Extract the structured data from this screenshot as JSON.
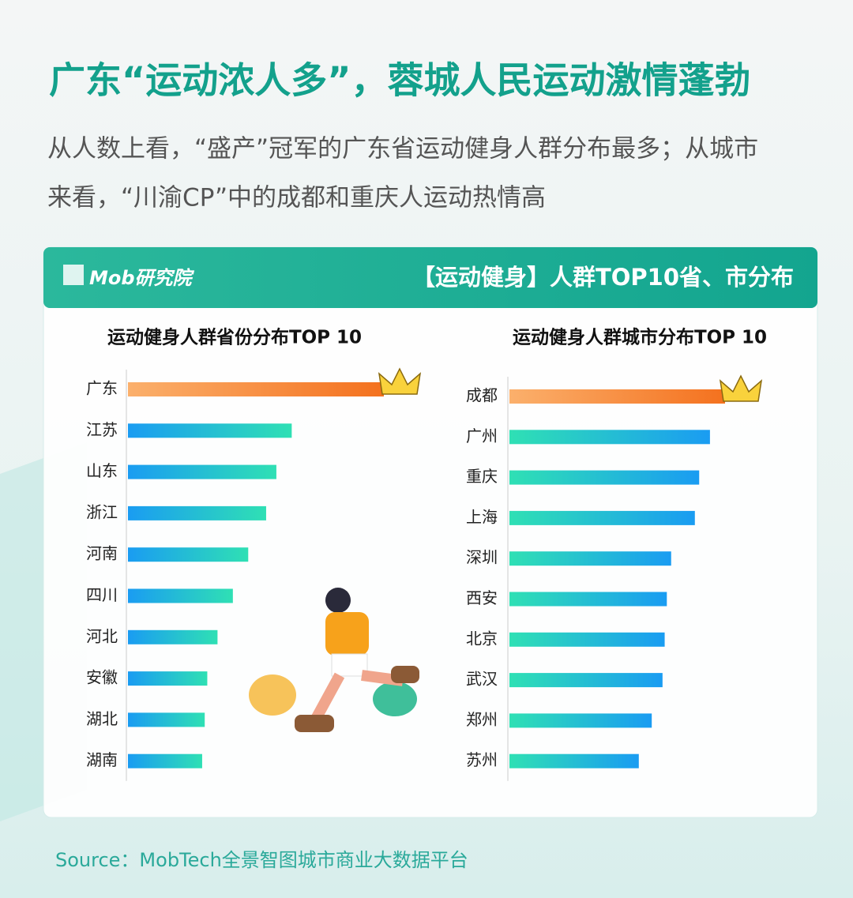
{
  "header": {
    "title": "广东“运动浓人多”，蓉城人民运动激情蓬勃",
    "subtitle_lines": [
      "从人数上看，“盛产”冠军的广东省运动健身人群分布最多；从城市",
      "来看，“川渝CP”中的成都和重庆人运动热情高"
    ]
  },
  "banner": {
    "logo": "Mob研究院",
    "title": "【运动健身】人群TOP10省、市分布"
  },
  "chart_data": [
    {
      "type": "hbar",
      "title": "运动健身人群省份分布TOP 10",
      "categories": [
        "广东",
        "江苏",
        "山东",
        "浙江",
        "河南",
        "四川",
        "河北",
        "安徽",
        "湖北",
        "湖南"
      ],
      "values": [
        100,
        64,
        58,
        54,
        47,
        41,
        35,
        31,
        30,
        29
      ],
      "xlim": [
        0,
        100
      ],
      "colors": [
        "#1a9cf2",
        "#2fe0b4"
      ],
      "highlight_colors": [
        "#fbb06c",
        "#f4711e"
      ]
    },
    {
      "type": "hbar",
      "title": "运动健身人群城市分布TOP 10",
      "categories": [
        "成都",
        "广州",
        "重庆",
        "上海",
        "深圳",
        "西安",
        "北京",
        "武汉",
        "郑州",
        "苏州"
      ],
      "values": [
        100,
        93,
        88,
        86,
        75,
        73,
        72,
        71,
        66,
        60
      ],
      "xlim": [
        0,
        100
      ],
      "colors": [
        "#2fe0b4",
        "#1a9cf2"
      ],
      "highlight_colors": [
        "#fbb06c",
        "#f4711e"
      ]
    }
  ],
  "source": "Source：MobTech全景智图城市商业大数据平台"
}
